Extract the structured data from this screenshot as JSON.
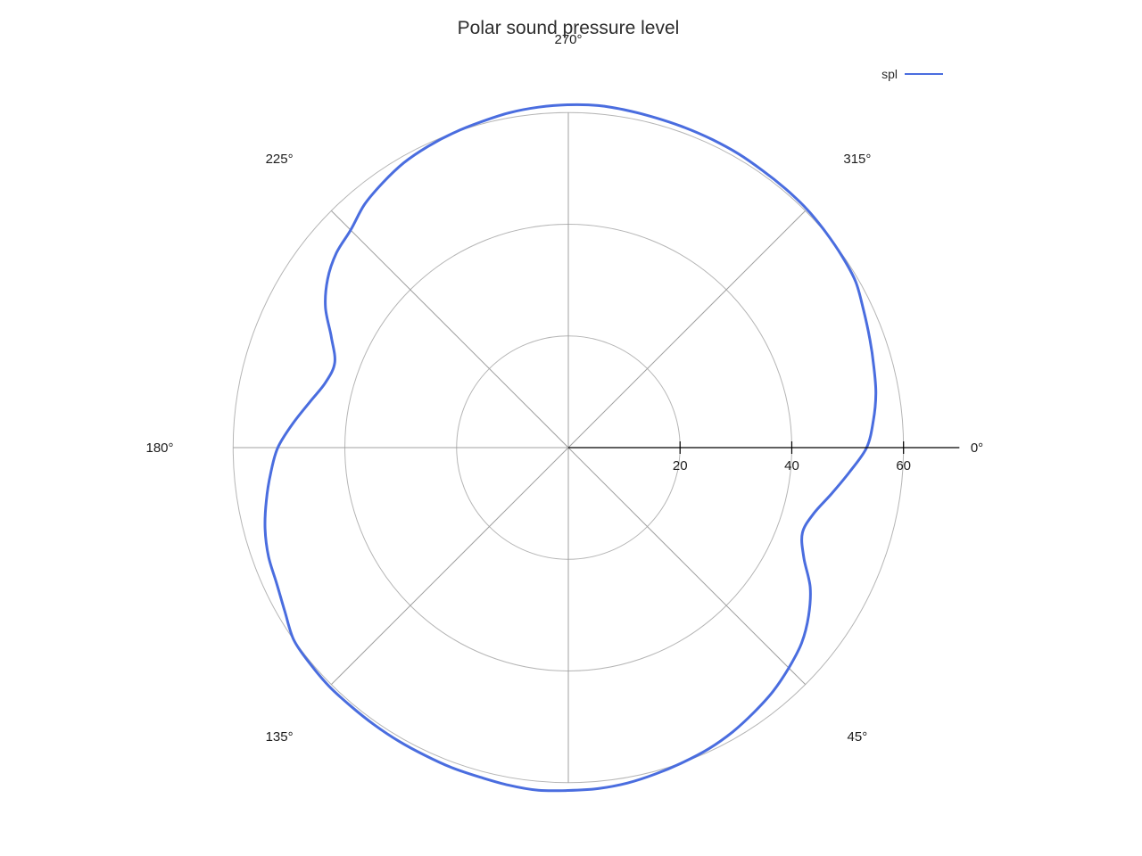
{
  "title": "Polar sound pressure level",
  "legend": {
    "label": "spl",
    "color": "#4a6ddf"
  },
  "colors": {
    "series_blue": "#4a6ddf",
    "grid_circle": "#b5b5b5",
    "grid_spoke": "#a0a0a0",
    "radial_axis": "#000000",
    "text": "#1c1c1c"
  },
  "chart_data": {
    "type": "line",
    "polar": true,
    "title": "Polar sound pressure level",
    "legend_position": "top-right",
    "angle_direction": "clockwise",
    "angle_zero_position": "right",
    "radial_ticks": [
      20,
      40,
      60
    ],
    "radial_range": [
      0,
      70
    ],
    "grid": true,
    "spoke_angles_deg": [
      45,
      90,
      135,
      180,
      225,
      270,
      315
    ],
    "angle_ticks": [
      {
        "angle": 0,
        "label": "0°"
      },
      {
        "angle": 45,
        "label": "45°"
      },
      {
        "angle": 135,
        "label": "135°"
      },
      {
        "angle": 180,
        "label": "180°"
      },
      {
        "angle": 225,
        "label": "225°"
      },
      {
        "angle": 270,
        "label": "270°"
      },
      {
        "angle": 315,
        "label": "315°"
      }
    ],
    "series": [
      {
        "name": "spl",
        "color": "#4a6ddf",
        "angles_deg": [
          0,
          5,
          10,
          15,
          20,
          25,
          30,
          35,
          40,
          45,
          50,
          55,
          60,
          65,
          70,
          75,
          80,
          85,
          90,
          95,
          100,
          105,
          110,
          115,
          120,
          125,
          130,
          135,
          140,
          145,
          150,
          155,
          160,
          165,
          170,
          175,
          180,
          185,
          190,
          195,
          200,
          205,
          210,
          215,
          220,
          225,
          230,
          235,
          240,
          245,
          250,
          255,
          260,
          265,
          270,
          275,
          280,
          285,
          290,
          295,
          300,
          305,
          310,
          315,
          320,
          325,
          330,
          335,
          340,
          345,
          350,
          355
        ],
        "values": [
          53.4,
          50.5,
          47.8,
          45.5,
          44.6,
          46.5,
          50.0,
          52.5,
          54.5,
          55.8,
          57.0,
          57.9,
          58.8,
          59.5,
          60.0,
          60.5,
          61.0,
          61.3,
          61.4,
          61.6,
          61.4,
          61.1,
          61.0,
          60.8,
          60.7,
          60.6,
          60.5,
          60.5,
          60.3,
          60.0,
          58.6,
          57.6,
          57.1,
          56.2,
          54.9,
          53.5,
          52.0,
          49.5,
          47.0,
          45.0,
          44.5,
          46.8,
          50.2,
          52.6,
          54.2,
          55.1,
          56.8,
          57.9,
          58.9,
          59.5,
          60.0,
          60.4,
          60.9,
          61.2,
          61.4,
          61.5,
          61.3,
          61.1,
          61.0,
          60.9,
          60.8,
          60.6,
          60.5,
          60.4,
          60.1,
          59.8,
          59.4,
          58.3,
          57.4,
          56.6,
          55.9,
          54.8
        ]
      }
    ]
  }
}
